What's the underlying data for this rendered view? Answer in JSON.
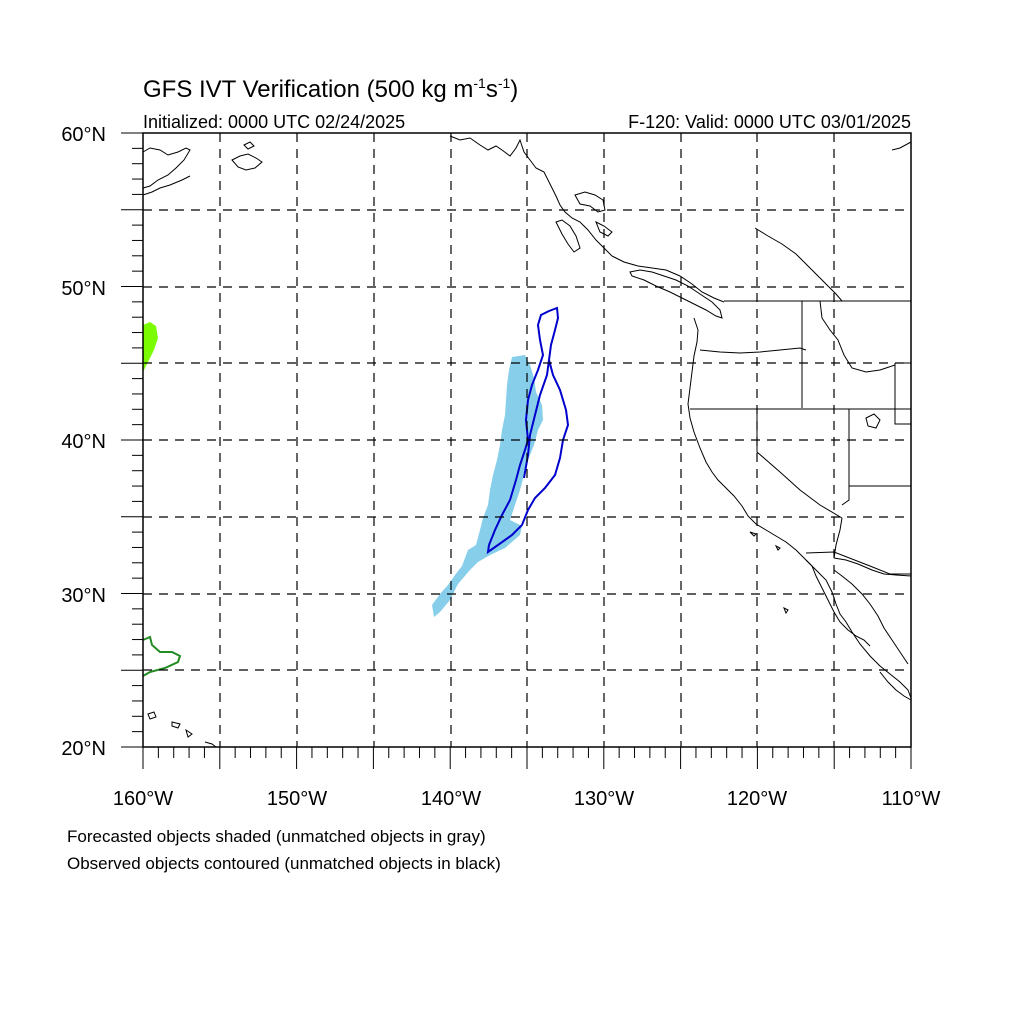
{
  "title": {
    "prefix": "GFS IVT Verification (500 kg m",
    "sup1": "-1",
    "mid": "s",
    "sup2": "-1",
    "suffix": ")"
  },
  "initialized": "Initialized: 0000 UTC 02/24/2025",
  "valid": "F-120: Valid: 0000 UTC 03/01/2025",
  "lat_labels": [
    "60°N",
    "50°N",
    "40°N",
    "30°N",
    "20°N"
  ],
  "lon_labels": [
    "160°W",
    "150°W",
    "140°W",
    "130°W",
    "120°W",
    "110°W"
  ],
  "map": {
    "lon_range": [
      -160,
      -110
    ],
    "lat_range": [
      20,
      60
    ]
  },
  "notes": {
    "forecast": "Forecasted objects shaded (unmatched objects in gray)",
    "observed": "Observed objects contoured (unmatched objects in black)"
  },
  "colors": {
    "forecast_matched": "#87ceeb",
    "forecast_edge": "#7cfc00",
    "observed_matched": "#0000cd",
    "observed_edge": "#228b22",
    "coast": "#000000"
  }
}
